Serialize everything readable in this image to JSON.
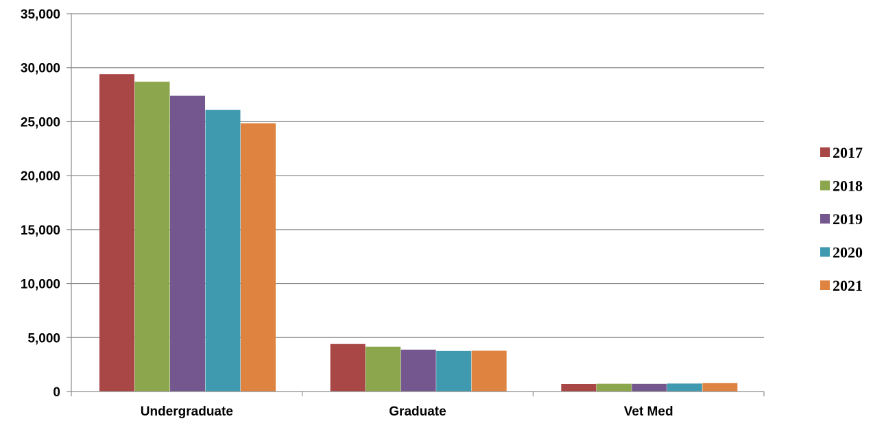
{
  "chart_data": {
    "type": "bar",
    "categories": [
      "Undergraduate",
      "Graduate",
      "Vet Med"
    ],
    "series": [
      {
        "name": "2017",
        "color": "#A84745",
        "values": [
          29400,
          4400,
          700
        ]
      },
      {
        "name": "2018",
        "color": "#8CA64D",
        "values": [
          28700,
          4150,
          720
        ]
      },
      {
        "name": "2019",
        "color": "#73578E",
        "values": [
          27400,
          3880,
          710
        ]
      },
      {
        "name": "2020",
        "color": "#3F9AB0",
        "values": [
          26100,
          3760,
          740
        ]
      },
      {
        "name": "2021",
        "color": "#DE8340",
        "values": [
          24850,
          3780,
          780
        ]
      }
    ],
    "ylim": [
      0,
      35000
    ],
    "yticks": [
      0,
      5000,
      10000,
      15000,
      20000,
      25000,
      30000,
      35000
    ],
    "ytick_labels": [
      "0",
      "5,000",
      "10,000",
      "15,000",
      "20,000",
      "25,000",
      "30,000",
      "35,000"
    ],
    "grid": true,
    "legend_position": "right"
  }
}
